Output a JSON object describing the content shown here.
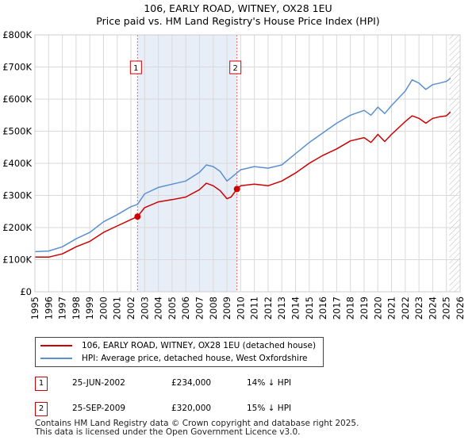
{
  "title_line1": "106, EARLY ROAD, WITNEY, OX28 1EU",
  "title_line2": "Price paid vs. HM Land Registry's House Price Index (HPI)",
  "chart_data": {
    "type": "line",
    "title": "106, EARLY ROAD, WITNEY, OX28 1EU — Price paid vs. HM Land Registry's House Price Index (HPI)",
    "xlabel": "",
    "ylabel": "",
    "xlim": [
      1995,
      2026
    ],
    "ylim": [
      0,
      800000
    ],
    "x_ticks": [
      "1995",
      "1996",
      "1997",
      "1998",
      "1999",
      "2000",
      "2001",
      "2002",
      "2003",
      "2004",
      "2005",
      "2006",
      "2007",
      "2008",
      "2009",
      "2010",
      "2011",
      "2012",
      "2013",
      "2014",
      "2015",
      "2016",
      "2017",
      "2018",
      "2019",
      "2020",
      "2021",
      "2022",
      "2023",
      "2024",
      "2025",
      "2026"
    ],
    "y_ticks": [
      {
        "value": 0,
        "label": "£0"
      },
      {
        "value": 100000,
        "label": "£100K"
      },
      {
        "value": 200000,
        "label": "£200K"
      },
      {
        "value": 300000,
        "label": "£300K"
      },
      {
        "value": 400000,
        "label": "£400K"
      },
      {
        "value": 500000,
        "label": "£500K"
      },
      {
        "value": 600000,
        "label": "£600K"
      },
      {
        "value": 700000,
        "label": "£700K"
      },
      {
        "value": 800000,
        "label": "£800K"
      }
    ],
    "grid": true,
    "shaded_period": [
      2002.48,
      2009.73
    ],
    "hatched_from": 2025.2,
    "series": [
      {
        "name": "106, EARLY ROAD, WITNEY, OX28 1EU (detached house)",
        "color": "#cc0000",
        "x": [
          1995.0,
          1996.0,
          1997.0,
          1998.0,
          1999.0,
          2000.0,
          2001.0,
          2002.0,
          2002.48,
          2003.0,
          2004.0,
          2005.0,
          2006.0,
          2007.0,
          2007.5,
          2008.0,
          2008.5,
          2009.0,
          2009.3,
          2009.73,
          2010.0,
          2011.0,
          2012.0,
          2013.0,
          2014.0,
          2015.0,
          2016.0,
          2017.0,
          2018.0,
          2019.0,
          2019.5,
          2020.0,
          2020.5,
          2021.0,
          2022.0,
          2022.5,
          2023.0,
          2023.5,
          2024.0,
          2024.5,
          2025.0,
          2025.3
        ],
        "y": [
          108000,
          108000,
          118000,
          140000,
          157000,
          185000,
          205000,
          225000,
          234000,
          262000,
          280000,
          287000,
          295000,
          318000,
          338000,
          330000,
          315000,
          290000,
          295000,
          320000,
          330000,
          335000,
          330000,
          345000,
          370000,
          400000,
          425000,
          445000,
          470000,
          480000,
          465000,
          490000,
          468000,
          490000,
          530000,
          548000,
          540000,
          525000,
          540000,
          545000,
          548000,
          560000
        ]
      },
      {
        "name": "HPI: Average price, detached house, West Oxfordshire",
        "color": "#5b8fd0",
        "x": [
          1995.0,
          1996.0,
          1997.0,
          1998.0,
          1999.0,
          2000.0,
          2001.0,
          2002.0,
          2002.48,
          2003.0,
          2004.0,
          2005.0,
          2006.0,
          2007.0,
          2007.5,
          2008.0,
          2008.5,
          2009.0,
          2009.3,
          2010.0,
          2011.0,
          2012.0,
          2013.0,
          2014.0,
          2015.0,
          2016.0,
          2017.0,
          2018.0,
          2019.0,
          2019.5,
          2020.0,
          2020.5,
          2021.0,
          2022.0,
          2022.5,
          2023.0,
          2023.5,
          2024.0,
          2024.5,
          2025.0,
          2025.3
        ],
        "y": [
          125000,
          127000,
          140000,
          165000,
          185000,
          218000,
          240000,
          265000,
          272000,
          305000,
          325000,
          335000,
          345000,
          372000,
          395000,
          390000,
          375000,
          345000,
          355000,
          380000,
          390000,
          385000,
          395000,
          430000,
          465000,
          495000,
          525000,
          550000,
          565000,
          550000,
          575000,
          555000,
          580000,
          625000,
          660000,
          650000,
          630000,
          645000,
          650000,
          655000,
          665000
        ]
      }
    ],
    "markers": [
      {
        "label": "1",
        "x": 2002.48,
        "y": 234000
      },
      {
        "label": "2",
        "x": 2009.73,
        "y": 320000
      }
    ]
  },
  "legend": {
    "items": [
      {
        "label": "106, EARLY ROAD, WITNEY, OX28 1EU (detached house)",
        "color": "#cc0000"
      },
      {
        "label": "HPI: Average price, detached house, West Oxfordshire",
        "color": "#5b8fd0"
      }
    ]
  },
  "transactions": [
    {
      "badge": "1",
      "date": "25-JUN-2002",
      "price": "£234,000",
      "hpi": "14% ↓ HPI"
    },
    {
      "badge": "2",
      "date": "25-SEP-2009",
      "price": "£320,000",
      "hpi": "15% ↓ HPI"
    }
  ],
  "footer": {
    "line1": "Contains HM Land Registry data © Crown copyright and database right 2025.",
    "line2": "This data is licensed under the Open Government Licence v3.0."
  }
}
